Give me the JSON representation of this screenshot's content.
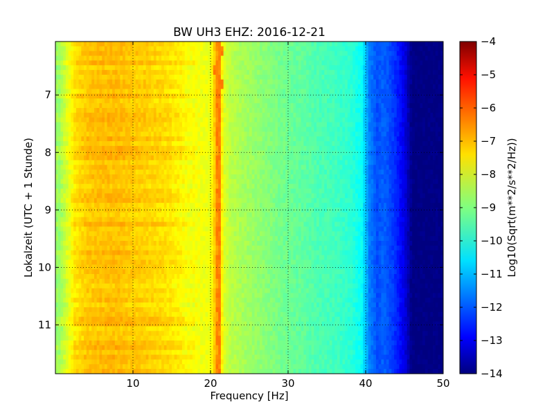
{
  "chart_data": {
    "type": "heatmap",
    "title": "BW UH3 EHZ: 2016-12-21",
    "xlabel": "Frequency [Hz]",
    "ylabel": "Lokalzeit (UTC + 1 Stunde)",
    "xlim": [
      0,
      50
    ],
    "ylim": [
      11.85,
      6.07
    ],
    "y_inverted": true,
    "grid": true,
    "grid_style": "dotted",
    "colormap": "jet",
    "xticks": [
      10,
      20,
      30,
      40,
      50
    ],
    "yticks": [
      7,
      8,
      9,
      10,
      11
    ],
    "colorbar": {
      "label": "Log10(Sqrt(m**2/s**2/Hz))",
      "range": [
        -14,
        -4
      ],
      "ticks": [
        -4,
        -5,
        -6,
        -7,
        -8,
        -9,
        -10,
        -11,
        -12,
        -13,
        -14
      ]
    },
    "spectrum_profile": {
      "frequency_hz": [
        0.5,
        1.5,
        2.5,
        4,
        6,
        8,
        10,
        12,
        14,
        16,
        17,
        18,
        19,
        20,
        20.7,
        21.1,
        21.6,
        22.5,
        24,
        26,
        28,
        30,
        32,
        34,
        36,
        38,
        39.5,
        40.5,
        41.5,
        42.3,
        43,
        44,
        45,
        46,
        48,
        50
      ],
      "log10_amplitude": [
        -8.7,
        -8.1,
        -7.5,
        -7.2,
        -7.1,
        -7.1,
        -7.2,
        -7.3,
        -7.4,
        -7.6,
        -7.8,
        -7.8,
        -7.9,
        -7.9,
        -7.0,
        -6.5,
        -8.0,
        -8.4,
        -8.6,
        -8.8,
        -9.0,
        -9.2,
        -9.3,
        -9.5,
        -9.6,
        -9.8,
        -10.2,
        -11.5,
        -12.0,
        -11.8,
        -12.0,
        -12.4,
        -13.0,
        -14.0,
        -14.0,
        -14.0
      ]
    },
    "notable_lines": [
      {
        "frequency_hz": 21.0,
        "log10_amplitude": -6.5
      },
      {
        "frequency_hz": 42.0,
        "log10_amplitude": -12.0
      }
    ]
  }
}
